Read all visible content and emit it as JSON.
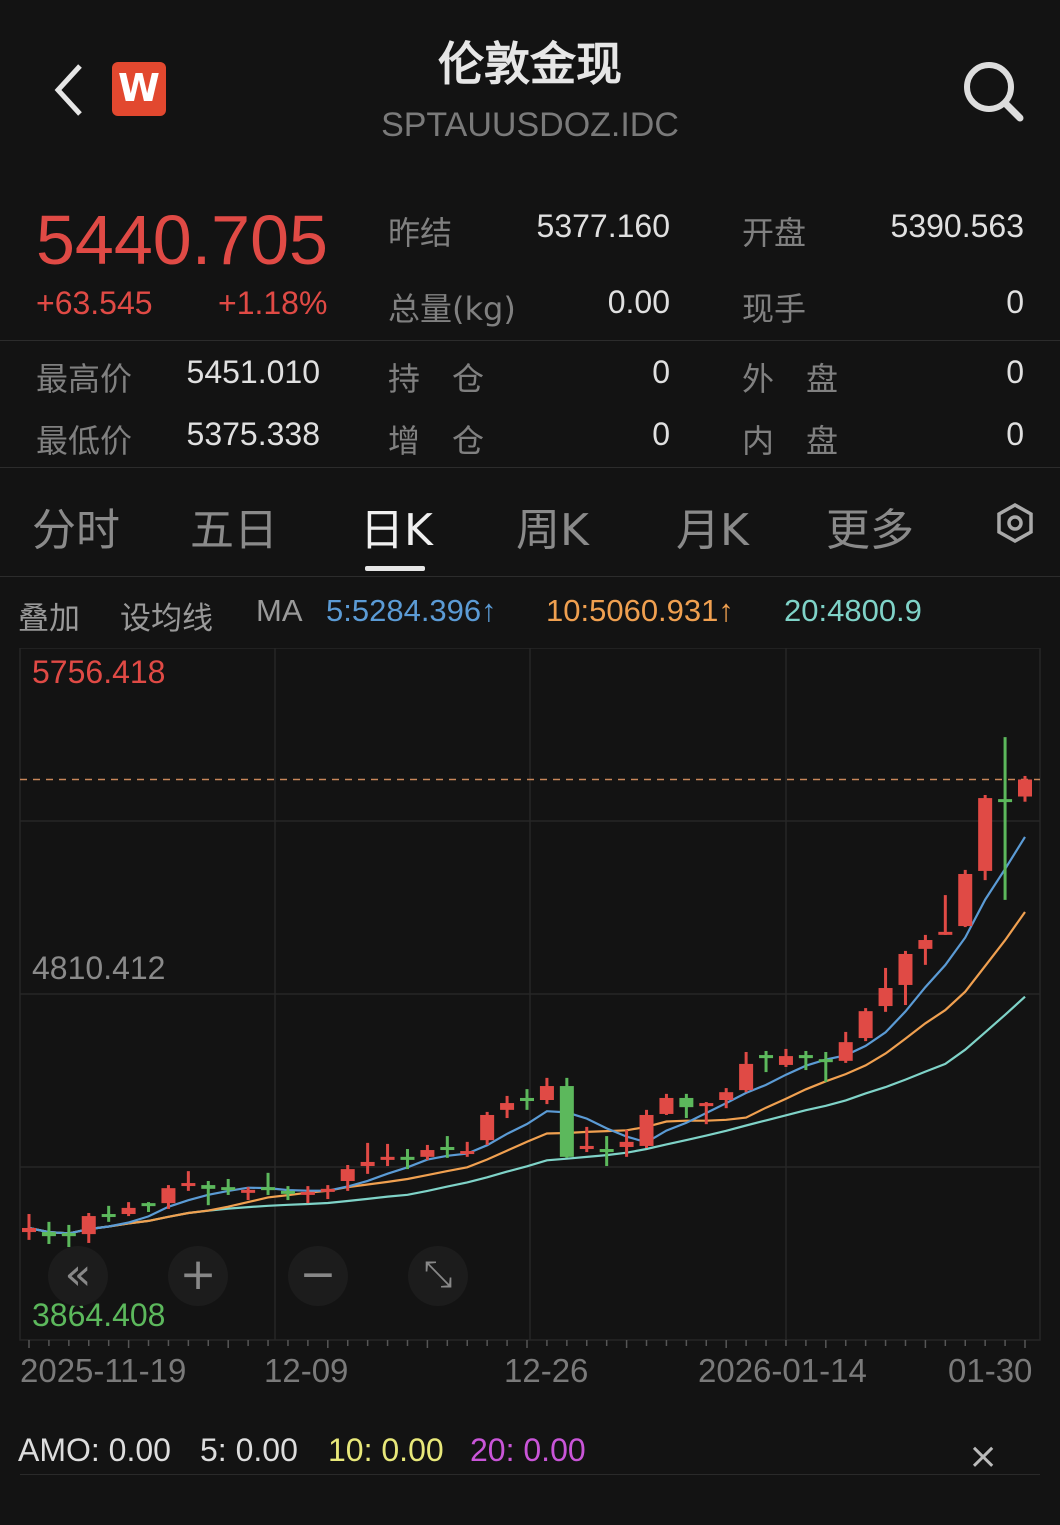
{
  "header": {
    "title": "伦敦金现",
    "code": "SPTAUUSDOZ.IDC",
    "logo": "W",
    "icons": [
      "back-chevron-icon",
      "search-icon"
    ]
  },
  "quote": {
    "price": "5440.705",
    "change": "+63.545",
    "change_pct": "+1.18%",
    "fields": [
      {
        "label": "昨结",
        "value": "5377.160"
      },
      {
        "label": "开盘",
        "value": "5390.563"
      },
      {
        "label": "总量(kg)",
        "value": "0.00"
      },
      {
        "label": "现手",
        "value": "0"
      },
      {
        "label": "最高价",
        "value": "5451.010"
      },
      {
        "label": "持　仓",
        "value": "0"
      },
      {
        "label": "外　盘",
        "value": "0"
      },
      {
        "label": "最低价",
        "value": "5375.338"
      },
      {
        "label": "增　仓",
        "value": "0"
      },
      {
        "label": "内　盘",
        "value": "0"
      }
    ],
    "colors": {
      "up": "#e04a45",
      "down": "#5cb85c"
    }
  },
  "tabs": [
    {
      "label": "分时"
    },
    {
      "label": "五日"
    },
    {
      "label": "日K",
      "active": true
    },
    {
      "label": "周K"
    },
    {
      "label": "月K"
    },
    {
      "label": "更多"
    }
  ],
  "ma_bar": {
    "overlay": "叠加",
    "set_ma": "设均线",
    "ma": "MA",
    "ma5": "5:5284.396↑",
    "ma10": "10:5060.931↑",
    "ma20": "20:4800.9",
    "colors": {
      "ma5": "#5b9bd5",
      "ma10": "#f0a050",
      "ma20": "#7fd3c8"
    }
  },
  "chart_data": {
    "type": "candlestick",
    "y_max_label": "5756.418",
    "y_mid_label": "4810.412",
    "y_min_label": "3864.408",
    "ylim": [
      3864.408,
      5756.418
    ],
    "x_tick_labels": [
      "2025-11-19",
      "12-09",
      "12-26",
      "2026-01-14",
      "01-30"
    ],
    "last_price": 5440.705,
    "grid": true,
    "candles": [
      [
        4111,
        4164,
        4088,
        4123
      ],
      [
        4111,
        4141,
        4076,
        4099
      ],
      [
        4108,
        4132,
        4067,
        4099
      ],
      [
        4105,
        4167,
        4079,
        4158
      ],
      [
        4164,
        4188,
        4141,
        4158
      ],
      [
        4164,
        4199,
        4158,
        4182
      ],
      [
        4196,
        4199,
        4170,
        4188
      ],
      [
        4196,
        4249,
        4179,
        4240
      ],
      [
        4249,
        4290,
        4232,
        4255
      ],
      [
        4249,
        4261,
        4190,
        4238
      ],
      [
        4243,
        4267,
        4220,
        4238
      ],
      [
        4229,
        4243,
        4205,
        4235
      ],
      [
        4243,
        4285,
        4220,
        4235
      ],
      [
        4232,
        4246,
        4205,
        4226
      ],
      [
        4223,
        4246,
        4196,
        4229
      ],
      [
        4229,
        4249,
        4208,
        4238
      ],
      [
        4261,
        4308,
        4232,
        4296
      ],
      [
        4305,
        4373,
        4282,
        4317
      ],
      [
        4323,
        4370,
        4305,
        4332
      ],
      [
        4332,
        4355,
        4296,
        4323
      ],
      [
        4332,
        4367,
        4323,
        4352
      ],
      [
        4361,
        4393,
        4329,
        4352
      ],
      [
        4343,
        4376,
        4332,
        4349
      ],
      [
        4381,
        4464,
        4367,
        4455
      ],
      [
        4470,
        4511,
        4446,
        4490
      ],
      [
        4505,
        4531,
        4470,
        4496
      ],
      [
        4499,
        4564,
        4487,
        4540
      ],
      [
        4540,
        4564,
        4329,
        4332
      ],
      [
        4355,
        4420,
        4346,
        4364
      ],
      [
        4355,
        4393,
        4305,
        4346
      ],
      [
        4361,
        4411,
        4332,
        4376
      ],
      [
        4364,
        4470,
        4358,
        4455
      ],
      [
        4458,
        4517,
        4455,
        4505
      ],
      [
        4505,
        4517,
        4446,
        4478
      ],
      [
        4481,
        4493,
        4428,
        4490
      ],
      [
        4499,
        4534,
        4475,
        4522
      ],
      [
        4528,
        4640,
        4522,
        4605
      ],
      [
        4631,
        4643,
        4581,
        4622
      ],
      [
        4602,
        4649,
        4596,
        4628
      ],
      [
        4631,
        4643,
        4587,
        4622
      ],
      [
        4619,
        4640,
        4552,
        4611
      ],
      [
        4614,
        4699,
        4608,
        4669
      ],
      [
        4681,
        4769,
        4672,
        4760
      ],
      [
        4775,
        4887,
        4758,
        4828
      ],
      [
        4837,
        4937,
        4778,
        4928
      ],
      [
        4943,
        4984,
        4896,
        4969
      ],
      [
        4990,
        5101,
        4984,
        4993
      ],
      [
        5010,
        5175,
        5007,
        5163
      ],
      [
        5172,
        5395,
        5145,
        5386
      ],
      [
        5383,
        5565,
        5087,
        5377.16
      ],
      [
        5390.563,
        5451.01,
        5375.338,
        5440.705
      ]
    ]
  },
  "controls": {
    "back": "«",
    "zoom_in": "+",
    "zoom_out": "−",
    "fullscreen": "⤡"
  },
  "amo": {
    "amo": "AMO: 0.00",
    "a5": "5: 0.00",
    "a10": "10: 0.00",
    "a20": "20: 0.00",
    "close": "×",
    "colors": {
      "a10": "#e8e87a",
      "a20": "#c955d8"
    }
  }
}
